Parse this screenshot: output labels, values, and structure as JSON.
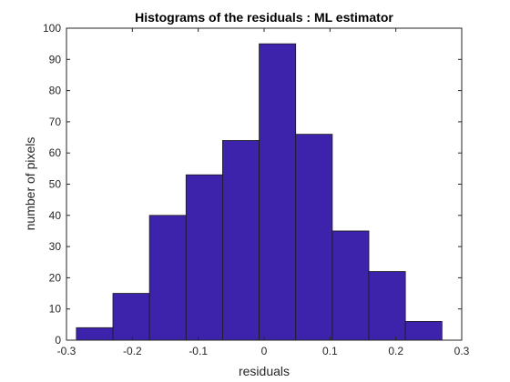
{
  "chart_data": {
    "type": "bar",
    "title": "Histograms of the residuals : ML estimator",
    "xlabel": "residuals",
    "ylabel": "number of pixels",
    "xlim": [
      -0.3,
      0.3
    ],
    "ylim": [
      0,
      100
    ],
    "xticks": [
      "-0.3",
      "-0.2",
      "-0.1",
      "0",
      "0.1",
      "0.2",
      "0.3"
    ],
    "yticks": [
      "0",
      "10",
      "20",
      "30",
      "40",
      "50",
      "60",
      "70",
      "80",
      "90",
      "100"
    ],
    "bin_edges": [
      -0.285,
      -0.2295,
      -0.174,
      -0.1185,
      -0.063,
      -0.0075,
      0.048,
      0.1035,
      0.159,
      0.2145,
      0.27
    ],
    "values": [
      4,
      15,
      40,
      53,
      64,
      95,
      66,
      35,
      22,
      6
    ],
    "grid": false,
    "colors": {
      "bar_fill": "#3D23AB",
      "bar_edge": "#1A1A1A",
      "axes": "#262626",
      "background": "#FFFFFF"
    }
  }
}
